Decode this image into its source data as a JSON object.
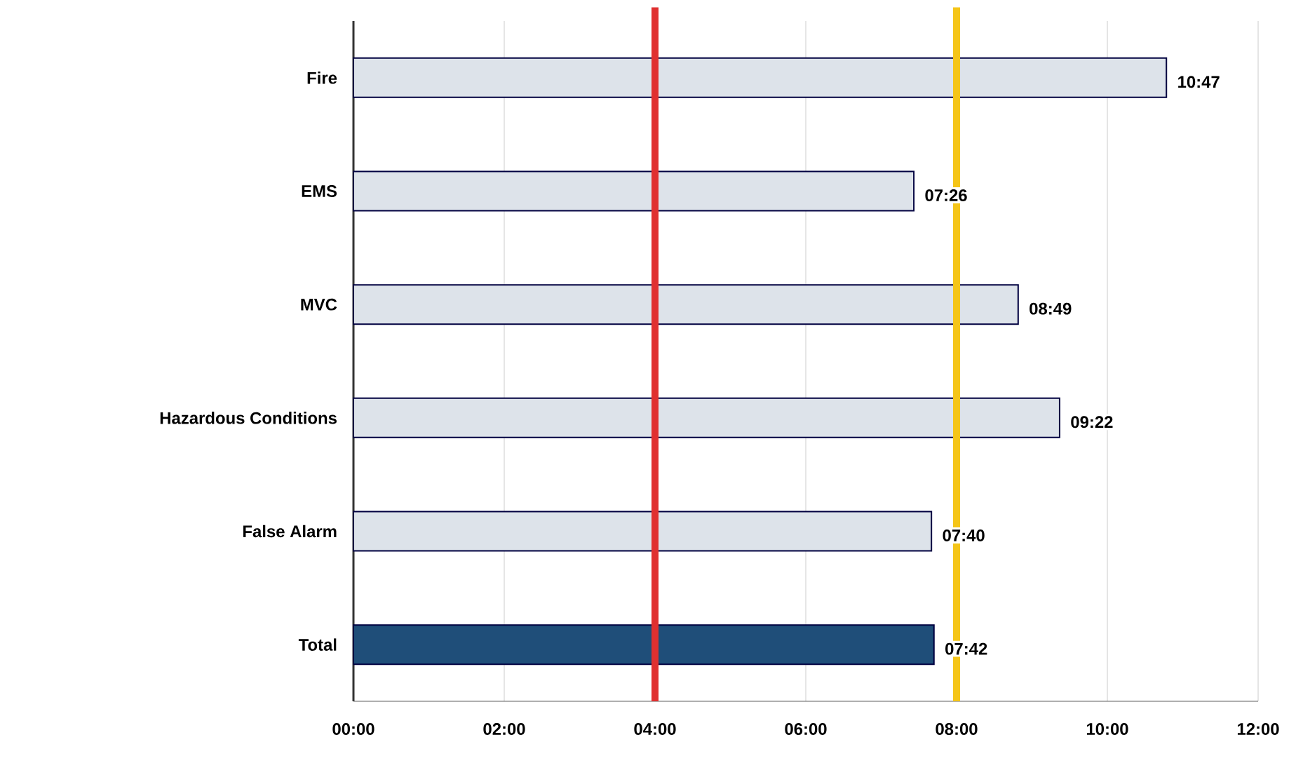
{
  "chart_data": {
    "type": "bar",
    "orientation": "horizontal",
    "categories": [
      "Fire",
      "EMS",
      "MVC",
      "Hazardous Conditions",
      "False Alarm",
      "Total"
    ],
    "values": [
      10.7833,
      7.4333,
      8.8167,
      9.3667,
      7.6667,
      7.7
    ],
    "value_labels": [
      "10:47",
      "07:26",
      "08:49",
      "09:22",
      "07:40",
      "07:42"
    ],
    "colors": [
      "#dde3ea",
      "#dde3ea",
      "#dde3ea",
      "#dde3ea",
      "#dde3ea",
      "#1f4e79"
    ],
    "xlim": [
      0,
      12
    ],
    "xticks": [
      {
        "value": 0,
        "label": "00:00"
      },
      {
        "value": 2,
        "label": "02:00"
      },
      {
        "value": 4,
        "label": "04:00"
      },
      {
        "value": 6,
        "label": "06:00"
      },
      {
        "value": 8,
        "label": "08:00"
      },
      {
        "value": 10,
        "label": "10:00"
      },
      {
        "value": 12,
        "label": "12:00"
      }
    ],
    "grid": "x",
    "ref_lines": [
      {
        "axis": "x",
        "value": 4,
        "color": "#e03030"
      },
      {
        "axis": "x",
        "value": 8,
        "color": "#f5c518"
      }
    ]
  }
}
